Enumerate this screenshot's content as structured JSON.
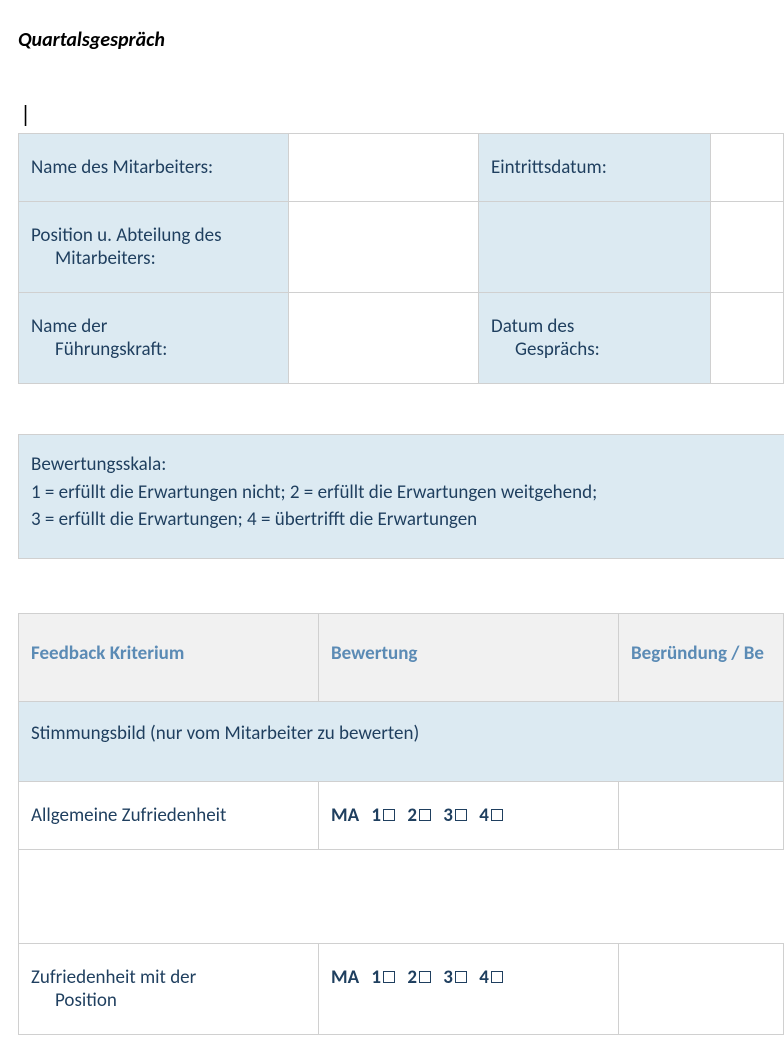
{
  "colors": {
    "header_bg": "#dceaf2",
    "header_text": "#1f3f5f",
    "border": "#d0d0d0",
    "th_bg": "#f1f1f1",
    "th_text": "#5b8bb5",
    "body_bg": "#ffffff"
  },
  "title": "Quartalsgespräch",
  "cursor": "|",
  "info": {
    "rows": [
      {
        "label_left_line1": "Name des Mitarbeiters:",
        "label_left_line2": "",
        "value_left": "",
        "label_right_line1": "Eintrittsdatum:",
        "label_right_line2": "",
        "value_right": ""
      },
      {
        "label_left_line1": "Position u. Abteilung des",
        "label_left_line2": "Mitarbeiters:",
        "value_left": "",
        "label_right_line1": "",
        "label_right_line2": "",
        "value_right": ""
      },
      {
        "label_left_line1": "Name der",
        "label_left_line2": "Führungskraft:",
        "value_left": "",
        "label_right_line1": "Datum des",
        "label_right_line2": "Gesprächs:",
        "value_right": ""
      }
    ]
  },
  "scale": {
    "title": "Bewertungsskala:",
    "line1": "1 = erfüllt die Erwartungen nicht;  2 = erfüllt die Erwartungen weitgehend;",
    "line2": "3 = erfüllt die Erwartungen; 4 = übertrifft die Erwartungen"
  },
  "feedback": {
    "headers": {
      "c1": "Feedback Kriterium",
      "c2": "Bewertung",
      "c3": "Begründung / Be"
    },
    "section_header": "Stimmungsbild (nur vom Mitarbeiter zu bewerten)",
    "rating_prefix": "MA",
    "rating_options": [
      "1",
      "2",
      "3",
      "4"
    ],
    "rows": [
      {
        "label_line1": "Allgemeine Zufriedenheit",
        "label_line2": "",
        "reason": ""
      },
      {
        "label_line1": "Zufriedenheit mit der",
        "label_line2": "Position",
        "reason": ""
      }
    ]
  }
}
